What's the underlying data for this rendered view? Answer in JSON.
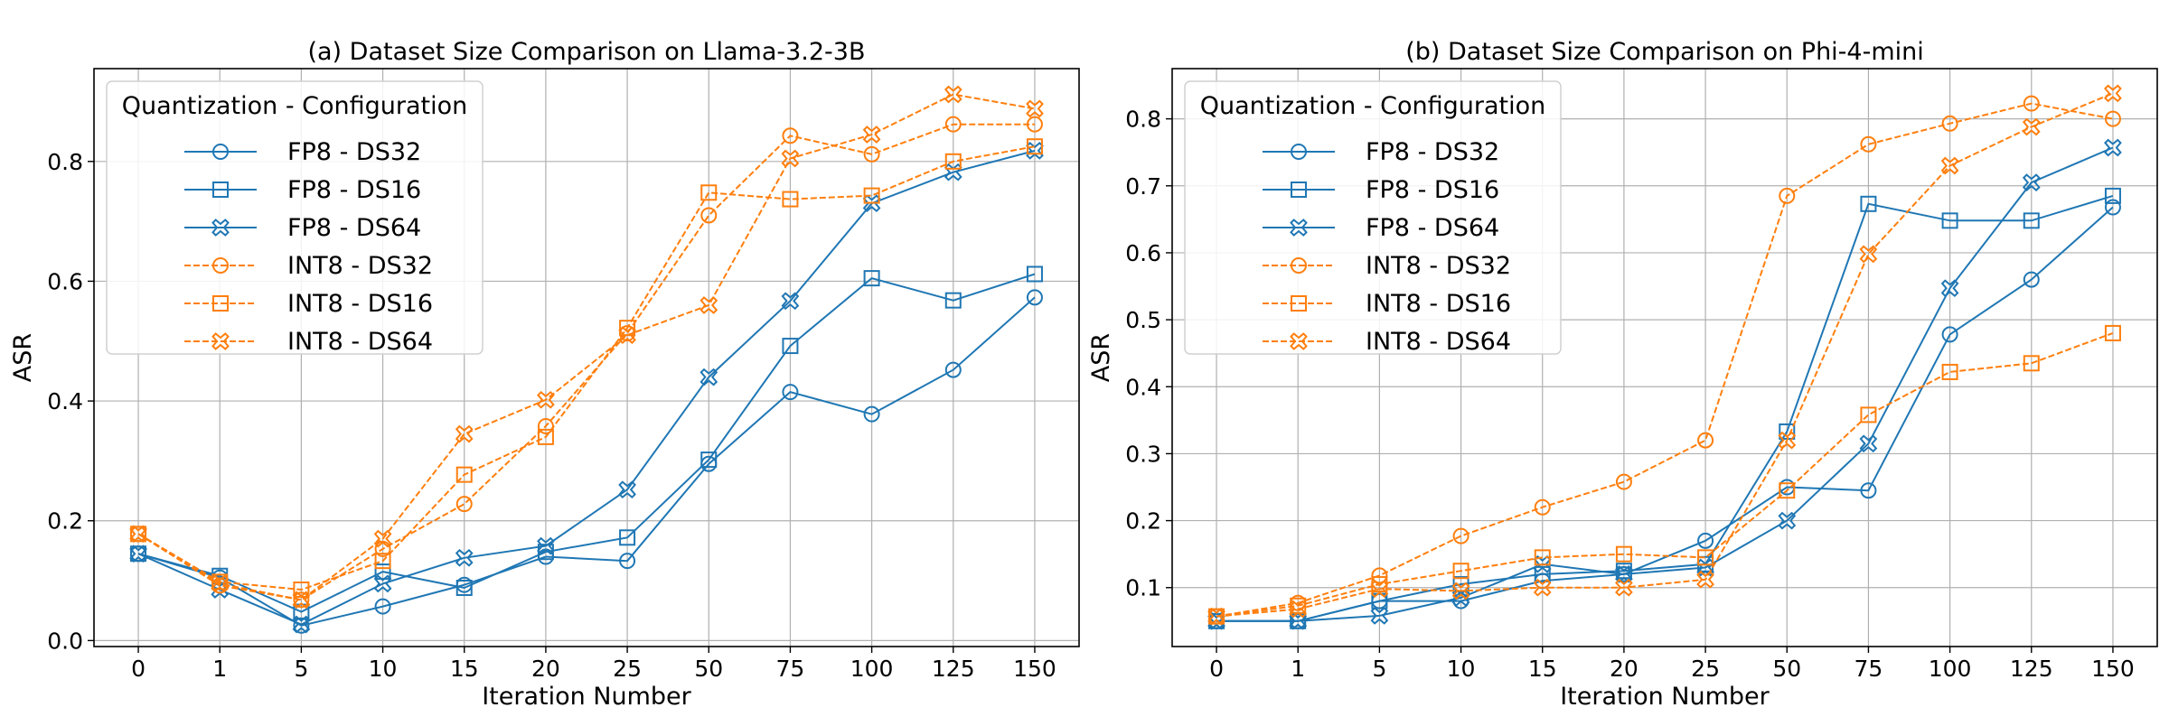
{
  "legend_title": "Quantization - Configuration",
  "styles": {
    "FP8": {
      "color": "#1f77b4",
      "dash": "solid"
    },
    "INT8": {
      "color": "#ff7f0e",
      "dash": "dashed"
    }
  },
  "chart_data": [
    {
      "type": "line",
      "title": "(a) Dataset Size Comparison on Llama-3.2-3B",
      "xlabel": "Iteration Number",
      "ylabel": "ASR",
      "categories": [
        "0",
        "1",
        "5",
        "10",
        "15",
        "20",
        "25",
        "50",
        "75",
        "100",
        "125",
        "150"
      ],
      "ylim": [
        -0.01,
        0.955
      ],
      "yticks": [
        "0.0",
        "0.2",
        "0.4",
        "0.6",
        "0.8"
      ],
      "ytick_values": [
        0.0,
        0.2,
        0.4,
        0.6,
        0.8
      ],
      "grid": true,
      "legend_position": "upper-left",
      "series": [
        {
          "name": "FP8 - DS32",
          "quant": "FP8",
          "marker": "circle",
          "values": [
            0.145,
            0.105,
            0.025,
            0.057,
            0.093,
            0.14,
            0.133,
            0.295,
            0.415,
            0.378,
            0.452,
            0.573
          ]
        },
        {
          "name": "FP8 - DS16",
          "quant": "FP8",
          "marker": "square",
          "values": [
            0.145,
            0.108,
            0.048,
            0.115,
            0.088,
            0.148,
            0.172,
            0.302,
            0.492,
            0.605,
            0.568,
            0.612
          ]
        },
        {
          "name": "FP8 - DS64",
          "quant": "FP8",
          "marker": "x",
          "values": [
            0.145,
            0.085,
            0.027,
            0.095,
            0.138,
            0.158,
            0.252,
            0.44,
            0.567,
            0.73,
            0.782,
            0.818
          ]
        },
        {
          "name": "INT8 - DS32",
          "quant": "INT8",
          "marker": "circle",
          "values": [
            0.178,
            0.092,
            0.068,
            0.153,
            0.228,
            0.358,
            0.513,
            0.71,
            0.843,
            0.812,
            0.862,
            0.862
          ]
        },
        {
          "name": "INT8 - DS16",
          "quant": "INT8",
          "marker": "square",
          "values": [
            0.178,
            0.098,
            0.085,
            0.133,
            0.277,
            0.34,
            0.522,
            0.748,
            0.737,
            0.743,
            0.8,
            0.825
          ]
        },
        {
          "name": "INT8 - DS64",
          "quant": "INT8",
          "marker": "x",
          "values": [
            0.178,
            0.095,
            0.068,
            0.17,
            0.345,
            0.402,
            0.51,
            0.56,
            0.805,
            0.845,
            0.912,
            0.888
          ]
        }
      ]
    },
    {
      "type": "line",
      "title": "(b) Dataset Size Comparison on Phi-4-mini",
      "xlabel": "Iteration Number",
      "ylabel": "ASR",
      "categories": [
        "0",
        "1",
        "5",
        "10",
        "15",
        "20",
        "25",
        "50",
        "75",
        "100",
        "125",
        "150"
      ],
      "ylim": [
        0.012,
        0.875
      ],
      "yticks": [
        "0.1",
        "0.2",
        "0.3",
        "0.4",
        "0.5",
        "0.6",
        "0.7",
        "0.8"
      ],
      "ytick_values": [
        0.1,
        0.2,
        0.3,
        0.4,
        0.5,
        0.6,
        0.7,
        0.8
      ],
      "grid": true,
      "legend_position": "upper-left",
      "series": [
        {
          "name": "FP8 - DS32",
          "quant": "FP8",
          "marker": "circle",
          "values": [
            0.05,
            0.05,
            0.08,
            0.08,
            0.11,
            0.12,
            0.17,
            0.25,
            0.245,
            0.478,
            0.56,
            0.668
          ]
        },
        {
          "name": "FP8 - DS16",
          "quant": "FP8",
          "marker": "square",
          "values": [
            0.05,
            0.05,
            0.08,
            0.105,
            0.12,
            0.125,
            0.135,
            0.333,
            0.673,
            0.648,
            0.648,
            0.685
          ]
        },
        {
          "name": "FP8 - DS64",
          "quant": "FP8",
          "marker": "x",
          "values": [
            0.05,
            0.05,
            0.058,
            0.085,
            0.135,
            0.12,
            0.13,
            0.2,
            0.315,
            0.547,
            0.705,
            0.757
          ]
        },
        {
          "name": "INT8 - DS32",
          "quant": "INT8",
          "marker": "circle",
          "values": [
            0.057,
            0.077,
            0.118,
            0.177,
            0.22,
            0.258,
            0.32,
            0.685,
            0.762,
            0.793,
            0.823,
            0.8
          ]
        },
        {
          "name": "INT8 - DS16",
          "quant": "INT8",
          "marker": "square",
          "values": [
            0.057,
            0.073,
            0.105,
            0.125,
            0.145,
            0.15,
            0.145,
            0.245,
            0.358,
            0.422,
            0.435,
            0.48
          ]
        },
        {
          "name": "INT8 - DS64",
          "quant": "INT8",
          "marker": "x",
          "values": [
            0.057,
            0.068,
            0.098,
            0.095,
            0.1,
            0.1,
            0.112,
            0.32,
            0.598,
            0.73,
            0.788,
            0.838
          ]
        }
      ]
    }
  ]
}
